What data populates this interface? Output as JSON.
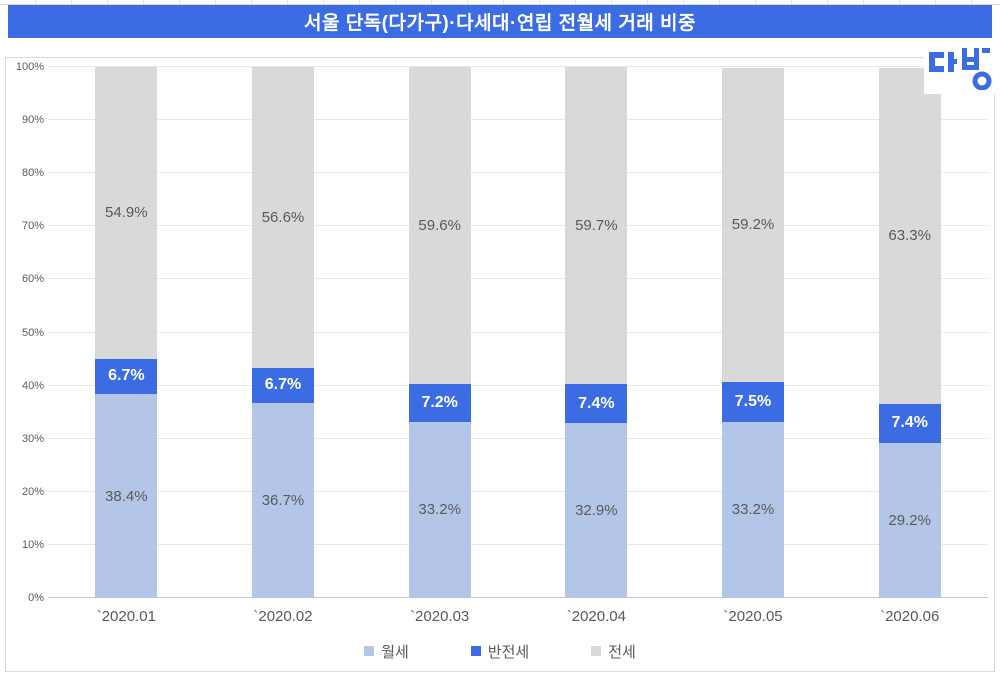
{
  "page": {
    "title": "서울 단독(다가구)·다세대·연립 전월세 거래 비중"
  },
  "logo": {
    "name": "다방",
    "color": "#3c6ce4"
  },
  "colors": {
    "title_bar": "#3c6ce4",
    "grid": "#e7e7e7",
    "axis_line": "#c6c6c6",
    "container_border": "#d9d9d9",
    "axis_text": "#595959"
  },
  "chart_data": {
    "type": "bar",
    "stacked": true,
    "title": "서울 단독(다가구)·다세대·연립 전월세 거래 비중",
    "categories": [
      "`2020.01",
      "`2020.02",
      "`2020.03",
      "`2020.04",
      "`2020.05",
      "`2020.06"
    ],
    "series": [
      {
        "name": "월세",
        "color": "#b3c6e7",
        "label_color": "#595959",
        "values": [
          38.4,
          36.7,
          33.2,
          32.9,
          33.2,
          29.2
        ]
      },
      {
        "name": "반전세",
        "color": "#3c6ce4",
        "label_color": "#ffffff",
        "values": [
          6.7,
          6.7,
          7.2,
          7.4,
          7.5,
          7.4
        ]
      },
      {
        "name": "전세",
        "color": "#d9d9d9",
        "label_color": "#595959",
        "values": [
          54.9,
          56.6,
          59.6,
          59.7,
          59.2,
          63.3
        ]
      }
    ],
    "value_label_suffix": "%",
    "y_axis": {
      "min": 0,
      "max": 100,
      "step": 10,
      "ticks": [
        "0%",
        "10%",
        "20%",
        "30%",
        "40%",
        "50%",
        "60%",
        "70%",
        "80%",
        "90%",
        "100%"
      ]
    },
    "xlabel": "",
    "ylabel": "",
    "grid": true,
    "legend_position": "bottom"
  }
}
